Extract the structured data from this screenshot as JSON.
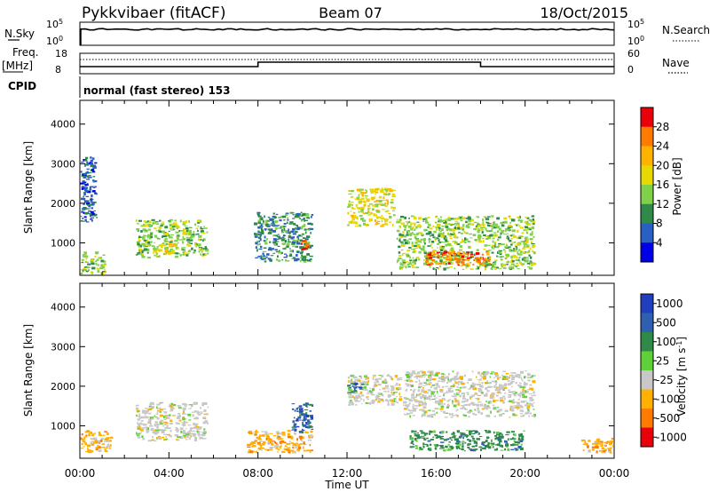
{
  "header": {
    "station": "Pykkvibaer (fitACF)",
    "beam": "Beam 07",
    "date": "18/Oct/2015"
  },
  "top_panels": {
    "noise": {
      "left_label": "N.Sky",
      "right_label": "N.Search",
      "ticks_left": [
        "10^5",
        "10^0"
      ],
      "ticks_right": [
        "10^5",
        "10^0"
      ]
    },
    "freq": {
      "left_label_1": "Freq.",
      "left_label_2": "[MHz]",
      "right_label": "Nave",
      "ticks_left": [
        "18",
        "8"
      ],
      "ticks_right": [
        "60",
        "0"
      ]
    },
    "cpid": {
      "label": "CPID",
      "text": "normal (fast stereo) 153"
    }
  },
  "colorbars": {
    "power": {
      "title": "Power [dB]",
      "labels": [
        "28",
        "24",
        "20",
        "16",
        "12",
        "8",
        "4"
      ],
      "colors": [
        "#e8000b",
        "#ff7a00",
        "#ffb300",
        "#e6d800",
        "#7fd14a",
        "#2f8a4a",
        "#2a5fc4",
        "#0000e6"
      ]
    },
    "velocity": {
      "title": "Velocity [m s^-1]",
      "labels": [
        "1000",
        "500",
        "100",
        "25",
        "-25",
        "-100",
        "-500",
        "-1000"
      ],
      "colors": [
        "#1f3fbf",
        "#2f5faf",
        "#2f8a4a",
        "#5fcf3a",
        "#c8c8c8",
        "#ffb000",
        "#ff7a00",
        "#e8000b"
      ]
    }
  },
  "chart_data": [
    {
      "type": "heatmap",
      "title": "",
      "ylabel": "Slant Range [km]",
      "xlabel": "",
      "colorbar_label": "Power [dB]",
      "ylim": [
        180,
        4600
      ],
      "yticks": [
        "1000",
        "2000",
        "3000",
        "4000"
      ],
      "regions": [
        {
          "x": [
            0.0,
            1.2
          ],
          "y": [
            200,
            800
          ],
          "value": 16
        },
        {
          "x": [
            0.0,
            0.8
          ],
          "y": [
            1500,
            3200
          ],
          "value": 8
        },
        {
          "x": [
            2.5,
            5.8
          ],
          "y": [
            600,
            1600
          ],
          "value": 14
        },
        {
          "x": [
            3.5,
            4.5
          ],
          "y": [
            700,
            1000
          ],
          "value": 20
        },
        {
          "x": [
            7.8,
            10.5
          ],
          "y": [
            500,
            1800
          ],
          "value": 12
        },
        {
          "x": [
            9.9,
            10.4
          ],
          "y": [
            800,
            1100
          ],
          "value": 26
        },
        {
          "x": [
            12.0,
            14.2
          ],
          "y": [
            1400,
            2400
          ],
          "value": 18
        },
        {
          "x": [
            14.2,
            20.5
          ],
          "y": [
            300,
            1700
          ],
          "value": 14
        },
        {
          "x": [
            15.5,
            18.5
          ],
          "y": [
            400,
            800
          ],
          "value": 28
        }
      ]
    },
    {
      "type": "heatmap",
      "title": "",
      "ylabel": "Slant Range [km]",
      "xlabel": "Time UT",
      "colorbar_label": "Velocity [m s^-1]",
      "ylim": [
        180,
        4600
      ],
      "yticks": [
        "1000",
        "2000",
        "3000",
        "4000"
      ],
      "xticks": [
        "00:00",
        "04:00",
        "08:00",
        "12:00",
        "16:00",
        "20:00",
        "00:00"
      ],
      "regions": [
        {
          "x": [
            0.0,
            1.5
          ],
          "y": [
            300,
            900
          ],
          "value": -100
        },
        {
          "x": [
            2.5,
            5.8
          ],
          "y": [
            600,
            1600
          ],
          "value": 0
        },
        {
          "x": [
            7.5,
            10.5
          ],
          "y": [
            300,
            900
          ],
          "value": -100
        },
        {
          "x": [
            9.5,
            10.5
          ],
          "y": [
            800,
            1600
          ],
          "value": 500
        },
        {
          "x": [
            12.0,
            14.5
          ],
          "y": [
            1500,
            2300
          ],
          "value": 0
        },
        {
          "x": [
            12.0,
            12.8
          ],
          "y": [
            1800,
            2100
          ],
          "value": 500
        },
        {
          "x": [
            14.5,
            20.5
          ],
          "y": [
            1200,
            2400
          ],
          "value": 0
        },
        {
          "x": [
            14.8,
            20.0
          ],
          "y": [
            350,
            900
          ],
          "value": 100
        },
        {
          "x": [
            22.5,
            24.0
          ],
          "y": [
            300,
            700
          ],
          "value": -100
        }
      ]
    }
  ]
}
